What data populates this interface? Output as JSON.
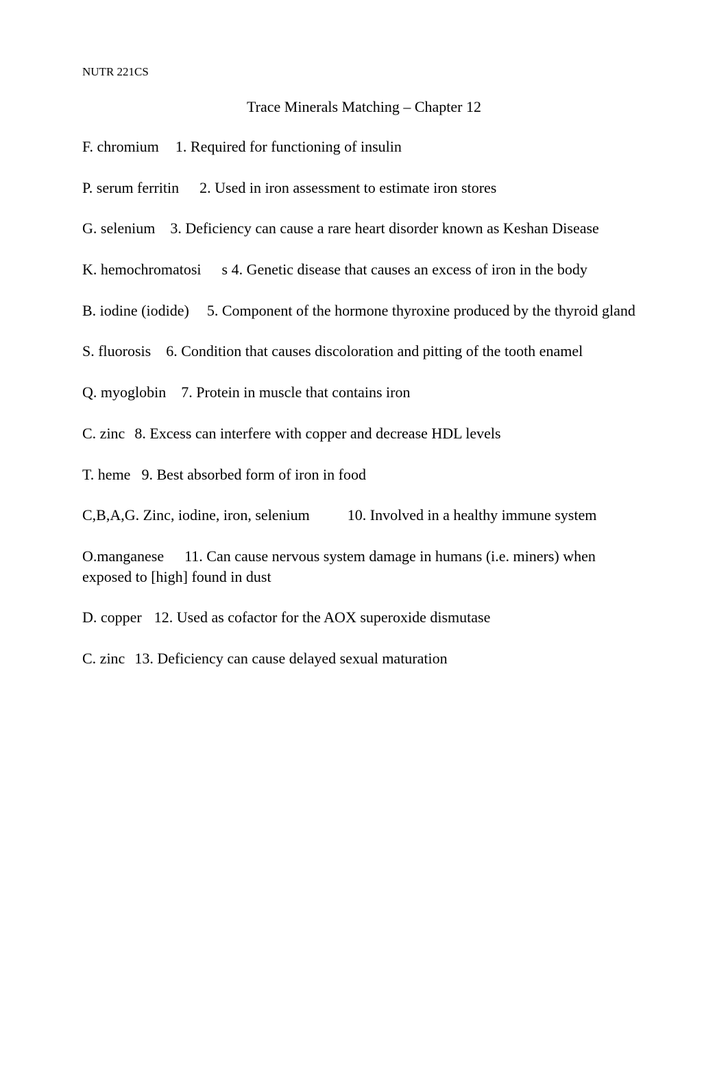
{
  "course_code": "NUTR 221CS",
  "title": "Trace Minerals Matching – Chapter 12",
  "items": [
    {
      "answer": "F. chromium",
      "gap": 24,
      "question": "1. Required for functioning of insulin"
    },
    {
      "answer": "P. serum ferritin",
      "gap": 30,
      "question": "2. Used in iron assessment to estimate iron stores"
    },
    {
      "answer": "G. selenium",
      "gap": 22,
      "question": "3. Deficiency can cause a rare heart disorder known as Keshan Disease"
    },
    {
      "answer": "K. hemochromatosi",
      "gap": 30,
      "question": "s 4. Genetic disease that causes an excess of iron in the body"
    },
    {
      "answer": "B. iodine (iodide)",
      "gap": 26,
      "question": "5. Component of the hormone thyroxine produced by the thyroid gland"
    },
    {
      "answer": "S. fluorosis",
      "gap": 22,
      "question": "6. Condition that causes discoloration and pitting of the tooth enamel"
    },
    {
      "answer": "Q. myoglobin",
      "gap": 22,
      "question": "7. Protein in muscle that contains iron"
    },
    {
      "answer": "C. zinc",
      "gap": 14,
      "question": "8. Excess can interfere with copper and decrease HDL levels"
    },
    {
      "answer": "T. heme",
      "gap": 16,
      "question": "9. Best absorbed form of iron in food"
    },
    {
      "answer": "C,B,A,G. Zinc, iodine, iron, selenium",
      "gap": 55,
      "question": "10. Involved in a healthy immune system"
    },
    {
      "answer": "O.manganese",
      "gap": 30,
      "question": "11. Can cause nervous system damage in humans (i.e. miners) when exposed to [high] found in dust"
    },
    {
      "answer": "D. copper",
      "gap": 18,
      "question": "12. Used as cofactor for the AOX superoxide dismutase"
    },
    {
      "answer": "C. zinc",
      "gap": 14,
      "question": "13. Deficiency can cause delayed sexual maturation"
    }
  ]
}
